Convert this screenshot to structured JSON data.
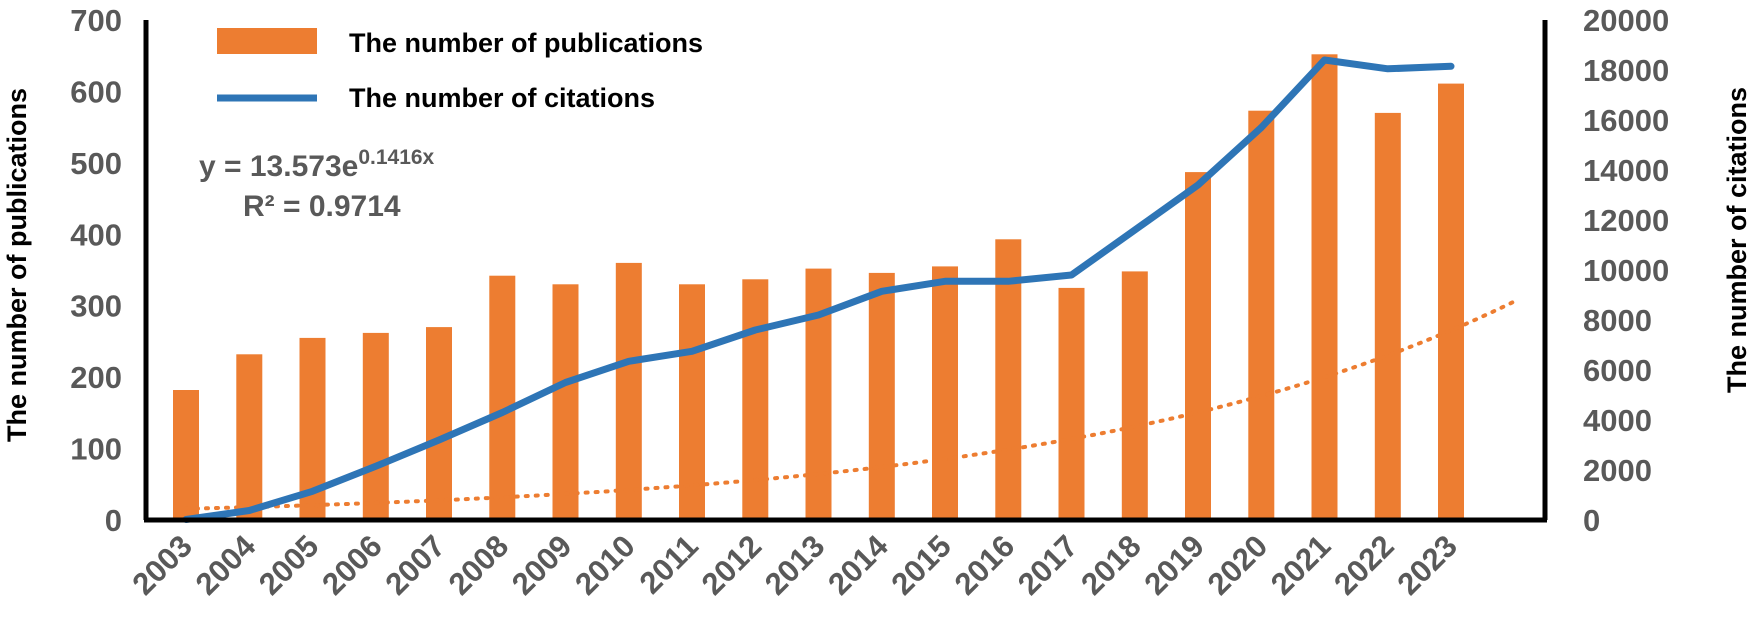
{
  "chart_data": {
    "type": "bar",
    "categories": [
      "2003",
      "2004",
      "2005",
      "2006",
      "2007",
      "2008",
      "2009",
      "2010",
      "2011",
      "2012",
      "2013",
      "2014",
      "2015",
      "2016",
      "2017",
      "2018",
      "2019",
      "2020",
      "2021",
      "2022",
      "2023"
    ],
    "series": [
      {
        "name": "The number of publications",
        "type": "bar",
        "axis": "left",
        "color": "#ED7D31",
        "values": [
          182,
          232,
          255,
          262,
          270,
          342,
          330,
          360,
          330,
          337,
          352,
          346,
          355,
          393,
          325,
          348,
          487,
          573,
          652,
          570,
          611
        ]
      },
      {
        "name": "The number of citations",
        "type": "line",
        "axis": "right",
        "color": "#2E75B6",
        "values": [
          20,
          380,
          1150,
          2150,
          3200,
          4300,
          5500,
          6350,
          6750,
          7600,
          8200,
          9150,
          9550,
          9550,
          9800,
          11600,
          13400,
          15700,
          18400,
          18050,
          18150
        ]
      }
    ],
    "trendline": {
      "type": "exponential",
      "series": "The number of publications",
      "style": "dotted",
      "color": "#ED7D31",
      "equation_prefix": "y = 13.573e",
      "equation_exponent": "0.1416x",
      "r_squared": "R² = 0.9714",
      "a": 13.573,
      "b": 0.1416
    },
    "ylabel_left": "The number of publications",
    "ylabel_right": "The number of citations",
    "ylim_left": [
      0,
      700
    ],
    "ylim_right": [
      0,
      20000
    ],
    "yticks_left": [
      0,
      100,
      200,
      300,
      400,
      500,
      600,
      700
    ],
    "yticks_right": [
      0,
      2000,
      4000,
      6000,
      8000,
      10000,
      12000,
      14000,
      16000,
      18000,
      20000
    ],
    "grid": false,
    "legend_position": "top-left"
  }
}
